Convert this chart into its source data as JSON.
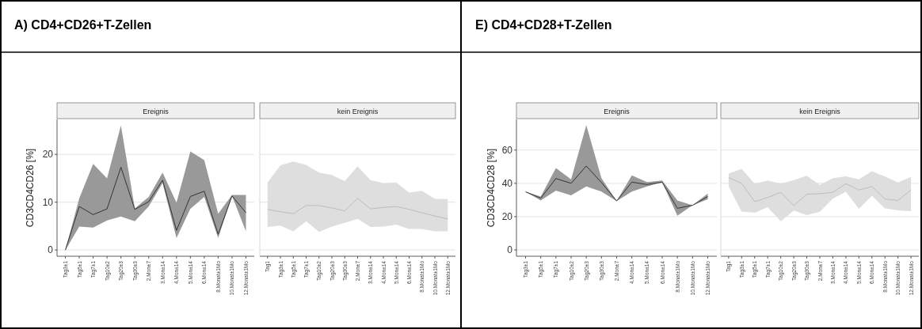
{
  "chart_data": [
    {
      "type": "line",
      "title": "A) CD4+CD26+T-Zellen",
      "subtitle": "Ereignis",
      "ylabel": "CD3CD4CD26 [%]",
      "grid": "y",
      "categories": [
        "Tag3±1",
        "Tag5±1",
        "Tag7±1",
        "Tag10±2",
        "Tag20±3",
        "Tag30±3",
        "2.Mon±7",
        "3.Mon±14",
        "4.Mon±14",
        "5.Mon±14",
        "6.Mon±14",
        "8.Monat±1Mo",
        "10.Monat±1Mo",
        "12.Monat±1Mo"
      ],
      "series": [
        {
          "color": "#333333",
          "values": [
            0,
            9.1,
            7.4,
            8.6,
            17.3,
            8.5,
            10.1,
            14.6,
            4.1,
            11.2,
            12.3,
            3.3,
            11.3,
            7.8
          ],
          "lower": [
            0,
            4.9,
            4.7,
            6.2,
            7.0,
            6.0,
            9.1,
            14.0,
            2.5,
            8.6,
            11.1,
            2.5,
            11.3,
            3.9
          ],
          "upper": [
            0,
            10.8,
            18.0,
            15.0,
            26.0,
            8.7,
            11.1,
            16.2,
            9.9,
            20.6,
            18.8,
            7.6,
            11.5,
            11.5
          ]
        }
      ],
      "ylim": [
        -1.3,
        27.3
      ],
      "yticks": [
        0,
        10,
        20
      ]
    },
    {
      "type": "line",
      "subtitle": "kein Ereignis",
      "grid": "y",
      "tick_labels": "x",
      "categories": [
        "Tag1",
        "Tag3±1",
        "Tag5±1",
        "Tag7±1",
        "Tag10±2",
        "Tag20±3",
        "Tag30±3",
        "2.Mon±7",
        "3.Mon±14",
        "4.Mon±14",
        "5.Mon±14",
        "6.Mon±14",
        "8.Monat±1Mo",
        "10.Monat±1Mo",
        "12.Monat±1Mo"
      ],
      "series": [
        {
          "color": "#bdbdbd",
          "values": [
            8.5,
            8.0,
            7.6,
            9.3,
            9.3,
            8.8,
            8.2,
            10.8,
            8.6,
            8.9,
            9.1,
            8.5,
            7.8,
            7.1,
            6.5
          ],
          "lower": [
            4.8,
            5.1,
            3.9,
            6.0,
            3.8,
            4.9,
            5.7,
            6.5,
            4.8,
            4.9,
            5.3,
            4.4,
            4.4,
            3.9,
            3.9
          ],
          "upper": [
            14.1,
            17.7,
            18.5,
            17.8,
            16.2,
            15.7,
            14.4,
            17.5,
            14.6,
            14.0,
            14.1,
            12.0,
            12.4,
            10.7,
            10.7
          ]
        }
      ],
      "ylim": [
        -1.3,
        27.3
      ],
      "yticks": [
        0,
        10,
        20
      ]
    },
    {
      "type": "line",
      "title": "E) CD4+CD28+T-Zellen",
      "subtitle": "Ereignis",
      "ylabel": "CD3CD4CD28 [%]",
      "grid": "y",
      "categories": [
        "Tag3±1",
        "Tag5±1",
        "Tag7±1",
        "Tag10±2",
        "Tag20±3",
        "Tag30±3",
        "2.Mon±7",
        "4.Mon±14",
        "5.Mon±14",
        "6.Mon±14",
        "8.Monat±1Mo",
        "10.Monat±1Mo",
        "12.Monat±1Mo"
      ],
      "series": [
        {
          "color": "#333333",
          "values": [
            34.9,
            31.1,
            42.9,
            40.0,
            50.4,
            40.5,
            29.4,
            40.7,
            39.3,
            40.7,
            25.0,
            26.8,
            32.1
          ],
          "lower": [
            34.9,
            29.7,
            35.6,
            32.8,
            38.1,
            35.0,
            29.4,
            35.0,
            38.1,
            40.7,
            20.5,
            26.8,
            30.4
          ],
          "upper": [
            34.9,
            32.1,
            49.2,
            42.4,
            74.9,
            43.1,
            29.4,
            44.8,
            40.7,
            41.7,
            29.7,
            26.8,
            33.9
          ]
        }
      ],
      "ylim": [
        -3.8,
        78.4
      ],
      "yticks": [
        0,
        20,
        40,
        60
      ]
    },
    {
      "type": "line",
      "subtitle": "kein Ereignis",
      "grid": "y",
      "tick_labels": "x",
      "categories": [
        "Tag1",
        "Tag3±1",
        "Tag5±1",
        "Tag7±1",
        "Tag10±2",
        "Tag20±3",
        "Tag30±3",
        "2.Mon±7",
        "3.Mon±14",
        "4.Mon±14",
        "5.Mon±14",
        "6.Mon±14",
        "8.Monat±1Mo",
        "10.Monat±1Mo",
        "12.Monat±1Mo"
      ],
      "series": [
        {
          "color": "#bdbdbd",
          "values": [
            43.4,
            40.0,
            29.0,
            31.5,
            34.6,
            26.6,
            33.5,
            33.8,
            34.6,
            39.8,
            36.0,
            38.1,
            30.6,
            29.7,
            36.0
          ],
          "lower": [
            38.1,
            23.0,
            22.3,
            25.7,
            17.2,
            23.6,
            20.9,
            22.9,
            30.8,
            34.9,
            24.7,
            32.5,
            25.0,
            23.7,
            23.3
          ],
          "upper": [
            45.9,
            48.7,
            39.8,
            41.7,
            39.8,
            41.9,
            44.5,
            39.1,
            43.1,
            44.2,
            42.4,
            47.3,
            44.1,
            40.5,
            43.8
          ]
        }
      ],
      "ylim": [
        -3.8,
        78.4
      ],
      "yticks": [
        0,
        20,
        40,
        60
      ]
    }
  ]
}
